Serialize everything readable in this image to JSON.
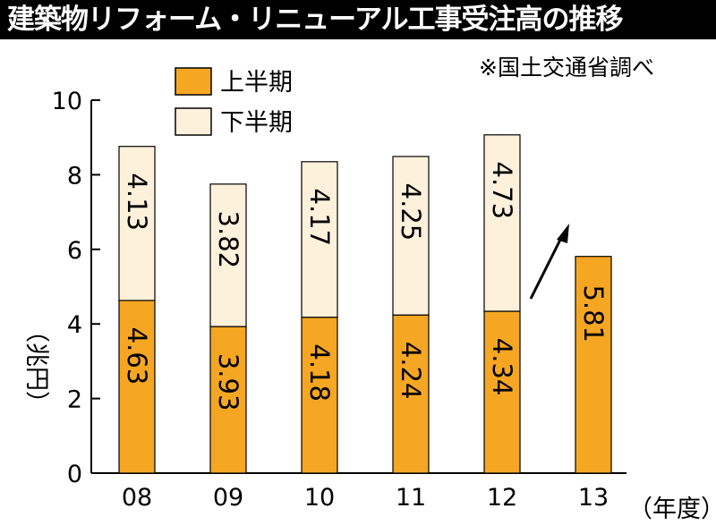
{
  "chart_data": {
    "type": "bar",
    "stacked": true,
    "title": "建築物リフォーム・リニューアル工事受注高の推移",
    "source_note": "※国土交通省調べ",
    "ylabel": "（兆円）",
    "xlabel": "（年度）",
    "ylim": [
      0,
      10
    ],
    "yticks": [
      "0",
      "2",
      "4",
      "6",
      "8",
      "10"
    ],
    "categories": [
      "08",
      "09",
      "10",
      "11",
      "12",
      "13"
    ],
    "series": [
      {
        "name": "上半期",
        "color": "#f5a623",
        "values": [
          4.63,
          3.93,
          4.18,
          4.24,
          4.34,
          5.81
        ],
        "labels": [
          "4.63",
          "3.93",
          "4.18",
          "4.24",
          "4.34",
          "5.81"
        ]
      },
      {
        "name": "下半期",
        "color": "#fdf1dc",
        "values": [
          4.13,
          3.82,
          4.17,
          4.25,
          4.73,
          null
        ],
        "labels": [
          "4.13",
          "3.82",
          "4.17",
          "4.25",
          "4.73",
          ""
        ]
      }
    ],
    "legend_position": "top-left",
    "grid": false,
    "annotation": "upward arrow after 12"
  }
}
